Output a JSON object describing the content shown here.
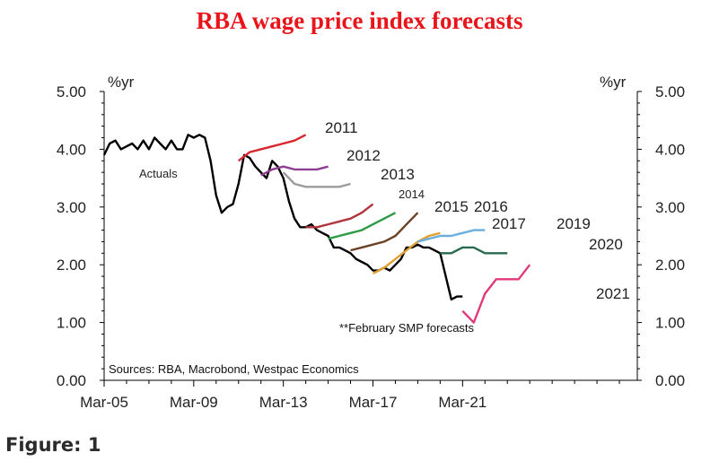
{
  "chart_data": {
    "type": "line",
    "title": "RBA wage price index forecasts",
    "ylabel_left": "%yr",
    "ylabel_right": "%yr",
    "ylim": [
      0,
      5
    ],
    "y_ticks": [
      "0.00",
      "1.00",
      "2.00",
      "3.00",
      "4.00",
      "5.00"
    ],
    "x_ticks": [
      "Mar-05",
      "Mar-09",
      "Mar-13",
      "Mar-17",
      "Mar-21"
    ],
    "xlim": [
      2005.0,
      2028.8
    ],
    "annotation": "**February SMP forecasts",
    "source": "Sources: RBA, Macrobond, Westpac Economics",
    "series": [
      {
        "name": "Actuals",
        "color": "#000000",
        "label_text": "Actuals",
        "x": [
          2005.0,
          2005.25,
          2005.5,
          2005.75,
          2006.0,
          2006.25,
          2006.5,
          2006.75,
          2007.0,
          2007.25,
          2007.5,
          2007.75,
          2008.0,
          2008.25,
          2008.5,
          2008.75,
          2009.0,
          2009.25,
          2009.5,
          2009.75,
          2010.0,
          2010.25,
          2010.5,
          2010.75,
          2011.0,
          2011.25,
          2011.5,
          2011.75,
          2012.0,
          2012.25,
          2012.5,
          2012.75,
          2013.0,
          2013.25,
          2013.5,
          2013.75,
          2014.0,
          2014.25,
          2014.5,
          2014.75,
          2015.0,
          2015.25,
          2015.5,
          2015.75,
          2016.0,
          2016.25,
          2016.5,
          2016.75,
          2017.0,
          2017.25,
          2017.5,
          2017.75,
          2018.0,
          2018.25,
          2018.5,
          2018.75,
          2019.0,
          2019.25,
          2019.5,
          2019.75,
          2020.0,
          2020.25,
          2020.5,
          2020.75,
          2021.0
        ],
        "values": [
          3.9,
          4.1,
          4.15,
          4.0,
          4.05,
          4.1,
          4.0,
          4.15,
          4.0,
          4.2,
          4.1,
          4.0,
          4.15,
          4.0,
          4.0,
          4.25,
          4.2,
          4.25,
          4.2,
          3.8,
          3.2,
          2.9,
          3.0,
          3.05,
          3.4,
          3.9,
          3.85,
          3.7,
          3.6,
          3.5,
          3.8,
          3.7,
          3.5,
          3.1,
          2.8,
          2.65,
          2.65,
          2.7,
          2.6,
          2.55,
          2.5,
          2.3,
          2.3,
          2.25,
          2.2,
          2.1,
          2.05,
          2.0,
          1.9,
          1.9,
          1.95,
          1.9,
          2.0,
          2.1,
          2.3,
          2.3,
          2.35,
          2.3,
          2.3,
          2.25,
          2.2,
          1.8,
          1.4,
          1.45,
          1.45
        ]
      },
      {
        "name": "2011",
        "color": "#d7262e",
        "label_text": "2011",
        "x": [
          2011.0,
          2011.5,
          2012.0,
          2012.5,
          2013.0,
          2013.5,
          2014.0
        ],
        "values": [
          3.8,
          3.95,
          4.0,
          4.05,
          4.1,
          4.15,
          4.25
        ]
      },
      {
        "name": "2012",
        "color": "#8e3e91",
        "label_text": "2012",
        "x": [
          2012.0,
          2012.5,
          2013.0,
          2013.5,
          2014.0,
          2014.5,
          2015.0
        ],
        "values": [
          3.55,
          3.65,
          3.7,
          3.65,
          3.65,
          3.65,
          3.7
        ]
      },
      {
        "name": "2013",
        "color": "#9b9b9b",
        "label_text": "2013",
        "x": [
          2013.0,
          2013.5,
          2014.0,
          2014.5,
          2015.0,
          2015.5,
          2016.0
        ],
        "values": [
          3.6,
          3.4,
          3.35,
          3.35,
          3.35,
          3.35,
          3.4
        ]
      },
      {
        "name": "2014",
        "color": "#b0343b",
        "label_text": "2014",
        "x": [
          2014.0,
          2014.5,
          2015.0,
          2015.5,
          2016.0,
          2016.5,
          2017.0
        ],
        "values": [
          2.65,
          2.65,
          2.7,
          2.75,
          2.8,
          2.9,
          3.05
        ]
      },
      {
        "name": "2015",
        "color": "#2e9a45",
        "label_text": "2015",
        "x": [
          2015.0,
          2015.5,
          2016.0,
          2016.5,
          2017.0,
          2017.5,
          2018.0
        ],
        "values": [
          2.45,
          2.5,
          2.55,
          2.6,
          2.7,
          2.8,
          2.9
        ]
      },
      {
        "name": "2016",
        "color": "#6b4226",
        "label_text": "2016",
        "x": [
          2016.0,
          2016.5,
          2017.0,
          2017.5,
          2018.0,
          2018.5,
          2019.0
        ],
        "values": [
          2.25,
          2.3,
          2.35,
          2.4,
          2.5,
          2.7,
          2.9
        ]
      },
      {
        "name": "2017",
        "color": "#e0a030",
        "label_text": "2017",
        "x": [
          2017.0,
          2017.5,
          2018.0,
          2018.5,
          2019.0,
          2019.5,
          2020.0
        ],
        "values": [
          1.85,
          1.95,
          2.1,
          2.25,
          2.4,
          2.5,
          2.55
        ]
      },
      {
        "name": "2019",
        "color": "#6aaee0",
        "label_text": "2019",
        "x": [
          2019.0,
          2019.5,
          2020.0,
          2020.5,
          2021.0,
          2021.5,
          2022.0
        ],
        "values": [
          2.4,
          2.45,
          2.5,
          2.5,
          2.55,
          2.6,
          2.6
        ]
      },
      {
        "name": "2020",
        "color": "#2a6a4e",
        "label_text": "2020",
        "x": [
          2020.0,
          2020.5,
          2021.0,
          2021.5,
          2022.0,
          2022.5,
          2023.0
        ],
        "values": [
          2.2,
          2.2,
          2.3,
          2.3,
          2.2,
          2.2,
          2.2
        ]
      },
      {
        "name": "2021",
        "color": "#e03a7a",
        "label_text": "2021",
        "x": [
          2021.0,
          2021.5,
          2022.0,
          2022.5,
          2023.0,
          2023.5,
          2024.0
        ],
        "values": [
          1.2,
          1.0,
          1.5,
          1.75,
          1.75,
          1.75,
          2.0
        ]
      }
    ]
  },
  "figure_caption": "Figure: 1"
}
